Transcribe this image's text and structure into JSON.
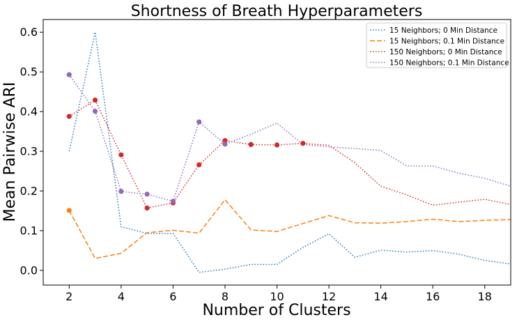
{
  "chart_data": {
    "type": "line",
    "title": "Shortness of Breath Hyperparameters",
    "xlabel": "Number of Clusters",
    "ylabel": "Mean Pairwise ARI",
    "xlim": [
      1,
      19
    ],
    "ylim": [
      -0.037,
      0.632
    ],
    "xticks": [
      2,
      4,
      6,
      8,
      10,
      12,
      14,
      16,
      18
    ],
    "yticks": [
      0.0,
      0.1,
      0.2,
      0.3,
      0.4,
      0.5,
      0.6
    ],
    "ytick_labels": [
      "0.0",
      "0.1",
      "0.2",
      "0.3",
      "0.4",
      "0.5",
      "0.6"
    ],
    "grid": false,
    "legend_position": "top-right",
    "x": [
      2,
      3,
      4,
      5,
      6,
      7,
      8,
      9,
      10,
      11,
      12,
      13,
      14,
      15,
      16,
      17,
      18,
      19
    ],
    "series": [
      {
        "name": "15 Neighbors; 0 Min Distance",
        "color": "#1f77b4",
        "style": "dotted",
        "values": [
          0.3,
          0.6,
          0.11,
          0.093,
          0.093,
          -0.005,
          0.003,
          0.015,
          0.015,
          0.058,
          0.092,
          0.033,
          0.051,
          0.046,
          0.05,
          0.041,
          0.025,
          0.016
        ],
        "markers": [],
        "marker_color": "#1f77b4"
      },
      {
        "name": "15 Neighbors; 0.1 Min Distance",
        "color": "#ff7f0e",
        "style": "dashed",
        "values": [
          0.151,
          0.03,
          0.043,
          0.095,
          0.101,
          0.094,
          0.178,
          0.102,
          0.098,
          0.118,
          0.138,
          0.12,
          0.119,
          0.123,
          0.129,
          0.123,
          0.126,
          0.128
        ],
        "markers": [
          2
        ],
        "marker_color": "#ff7f0e"
      },
      {
        "name": "150 Neighbors; 0 Min Distance",
        "color": "#d62728",
        "style": "dotted",
        "values": [
          0.388,
          0.429,
          0.291,
          0.157,
          0.17,
          0.266,
          0.327,
          0.317,
          0.316,
          0.32,
          0.315,
          0.271,
          0.212,
          0.19,
          0.164,
          0.172,
          0.179,
          0.166
        ],
        "markers": [
          2,
          3,
          4,
          5,
          6,
          7,
          8,
          9,
          10,
          11
        ],
        "marker_color": "#d62728"
      },
      {
        "name": "150 Neighbors; 0.1 Min Distance",
        "color": "#9467bd",
        "style": "dotted",
        "values": [
          0.493,
          0.401,
          0.199,
          0.192,
          0.174,
          0.374,
          0.318,
          0.343,
          0.371,
          0.317,
          0.311,
          0.307,
          0.302,
          0.263,
          0.263,
          0.245,
          0.232,
          0.212
        ],
        "markers": [
          2,
          3,
          4,
          5,
          6,
          7,
          8
        ],
        "marker_color": "#9467bd"
      }
    ]
  }
}
